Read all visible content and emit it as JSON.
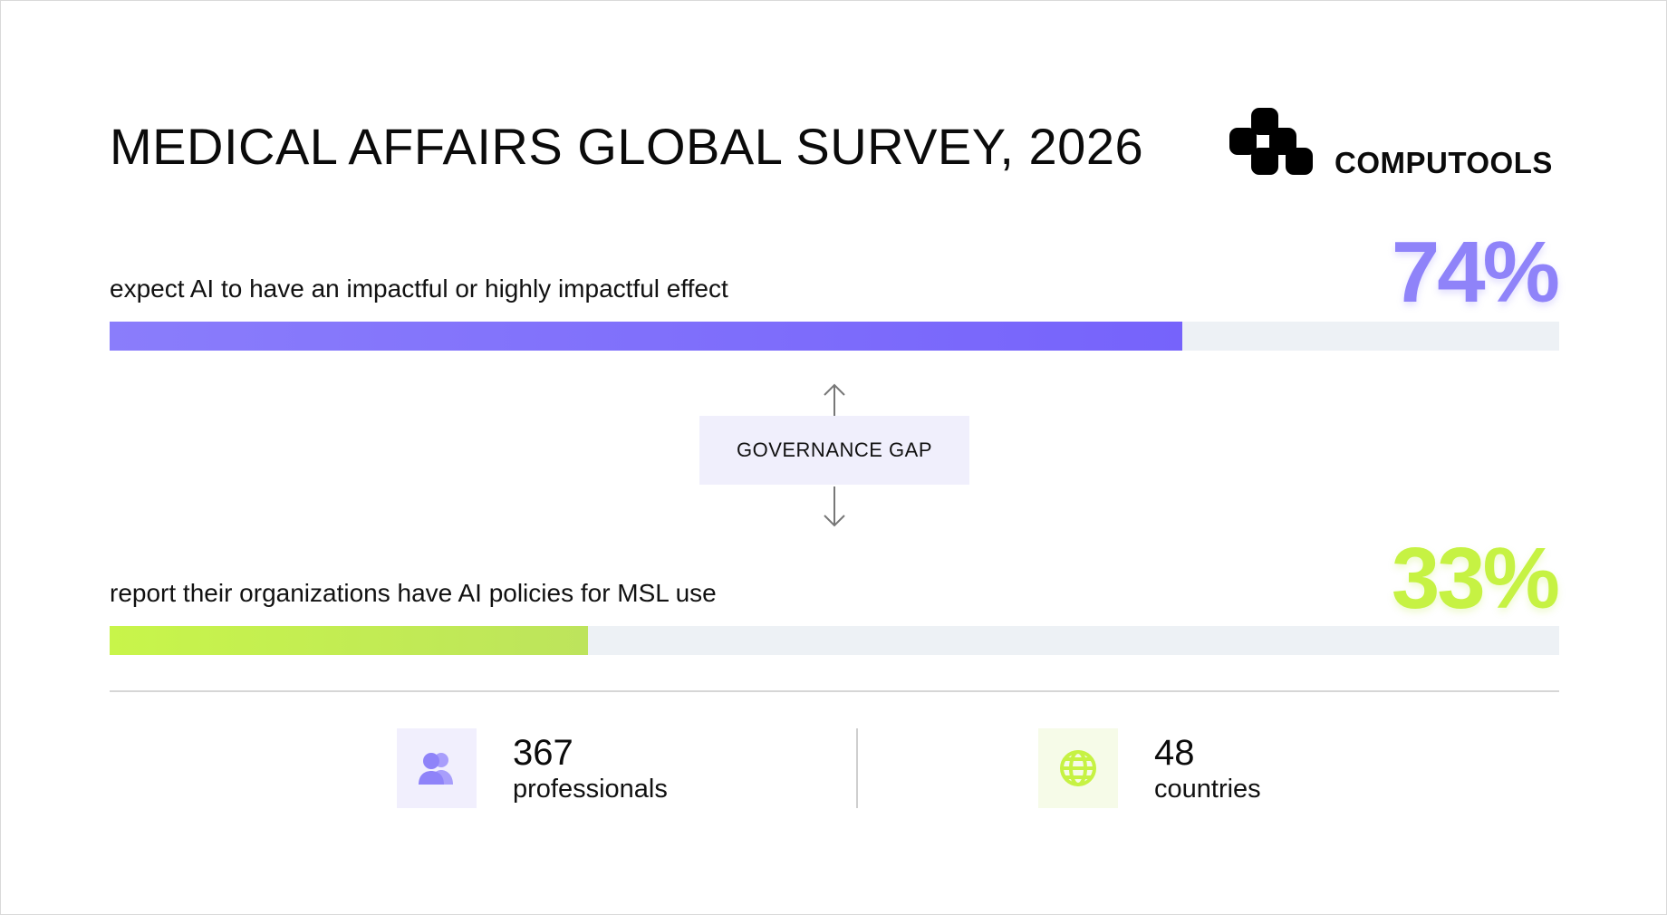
{
  "header": {
    "title": "MEDICAL AFFAIRS GLOBAL SURVEY, 2026",
    "brand": "COMPUTOOLS"
  },
  "chart_data": {
    "type": "bar",
    "title": "MEDICAL AFFAIRS GLOBAL SURVEY, 2026",
    "orientation": "horizontal",
    "categories": [
      "expect AI to have an impactful or highly impactful effect",
      "report their organizations have AI policies for MSL use"
    ],
    "values": [
      74,
      33
    ],
    "value_labels": [
      "74%",
      "33%"
    ],
    "xlim": [
      0,
      100
    ],
    "grid": false,
    "annotation": "GOVERNANCE GAP"
  },
  "stats": [
    {
      "value": "367",
      "label": "professionals",
      "icon": "people-icon"
    },
    {
      "value": "48",
      "label": "countries",
      "icon": "globe-icon"
    }
  ],
  "colors": {
    "bar1_start": "#8a7dfb",
    "bar1_end": "#7663fb",
    "bar2_start": "#c8f54a",
    "bar2_end": "#bde45c",
    "track": "#edf1f5",
    "pct1": "#8f83f9",
    "pct2": "#c6f243",
    "icon_bg_people": "#f1effd",
    "icon_people": "#8f83f9",
    "icon_bg_globe": "#f6fbe8",
    "icon_globe": "#c6f243"
  }
}
